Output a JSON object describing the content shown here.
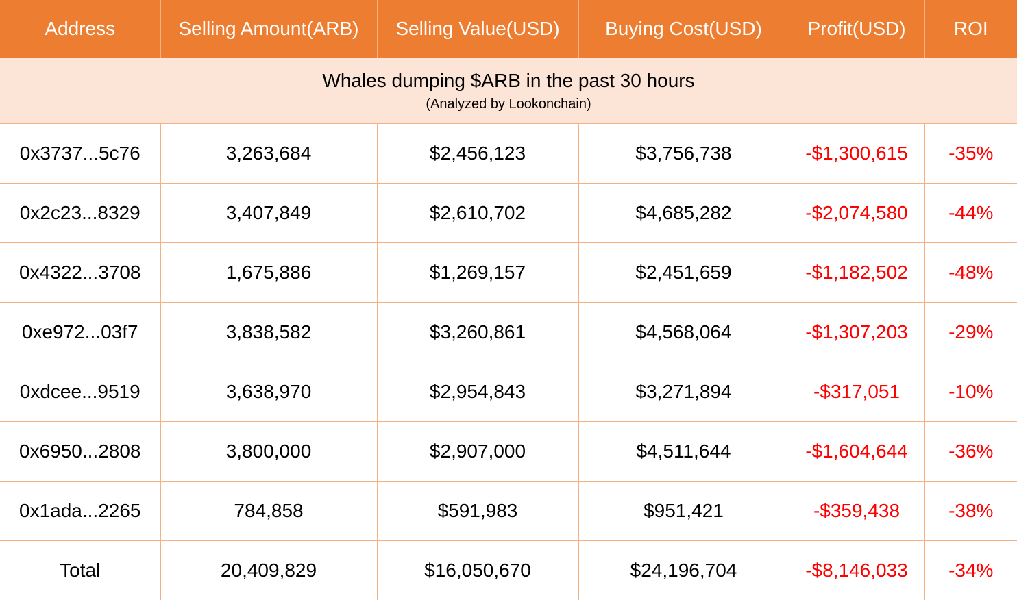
{
  "table": {
    "headers": [
      "Address",
      "Selling Amount(ARB)",
      "Selling Value(USD)",
      "Buying Cost(USD)",
      "Profit(USD)",
      "ROI"
    ],
    "banner_title": "Whales dumping $ARB in the past 30 hours",
    "banner_subtitle": "(Analyzed by Lookonchain)",
    "rows": [
      [
        "0x3737...5c76",
        "3,263,684",
        "$2,456,123",
        "$3,756,738",
        "-$1,300,615",
        "-35%"
      ],
      [
        "0x2c23...8329",
        "3,407,849",
        "$2,610,702",
        "$4,685,282",
        "-$2,074,580",
        "-44%"
      ],
      [
        "0x4322...3708",
        "1,675,886",
        "$1,269,157",
        "$2,451,659",
        "-$1,182,502",
        "-48%"
      ],
      [
        "0xe972...03f7",
        "3,838,582",
        "$3,260,861",
        "$4,568,064",
        "-$1,307,203",
        "-29%"
      ],
      [
        "0xdcee...9519",
        "3,638,970",
        "$2,954,843",
        "$3,271,894",
        "-$317,051",
        "-10%"
      ],
      [
        "0x6950...2808",
        "3,800,000",
        "$2,907,000",
        "$4,511,644",
        "-$1,604,644",
        "-36%"
      ],
      [
        "0x1ada...2265",
        "784,858",
        "$591,983",
        "$951,421",
        "-$359,438",
        "-38%"
      ]
    ],
    "total": [
      "Total",
      "20,409,829",
      "$16,050,670",
      "$24,196,704",
      "-$8,146,033",
      "-34%"
    ]
  },
  "colors": {
    "header_bg": "#ED7D31",
    "banner_bg": "#FCE4D6",
    "grid_line": "#F4B183",
    "negative_text": "#FF0000"
  }
}
